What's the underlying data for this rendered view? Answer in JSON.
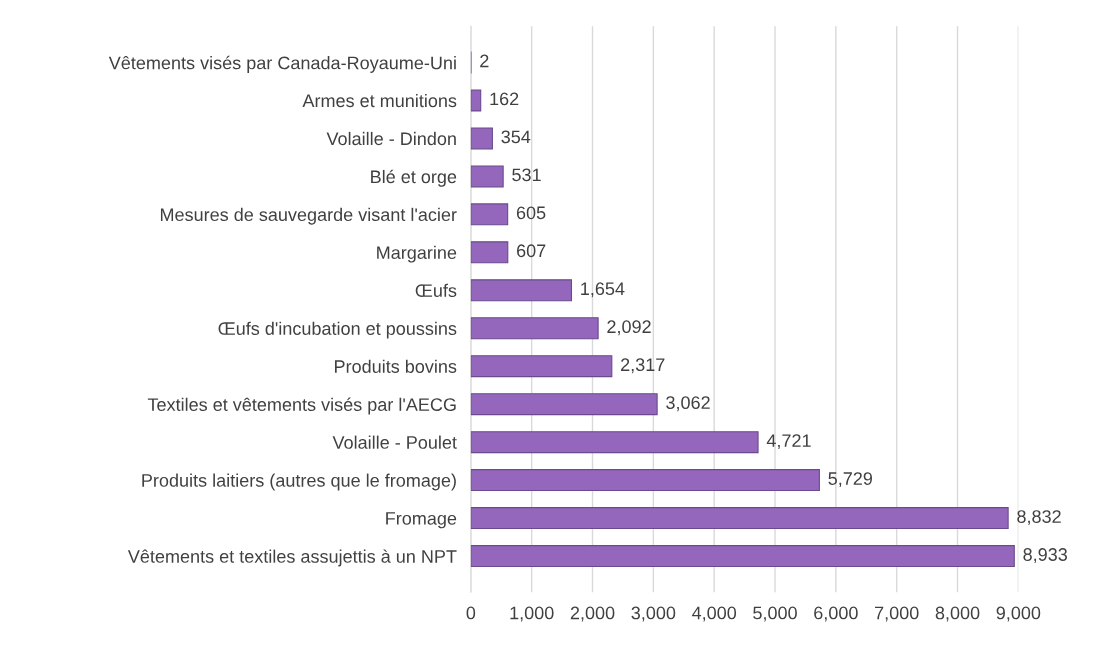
{
  "chart_data": {
    "type": "bar",
    "orientation": "horizontal",
    "categories": [
      "Vêtements visés par Canada-Royaume-Uni",
      "Armes et munitions",
      "Volaille - Dindon",
      "Blé et orge",
      "Mesures de sauvegarde visant l'acier",
      "Margarine",
      "Œufs",
      "Œufs d'incubation et poussins",
      "Produits bovins",
      "Textiles et vêtements visés par l'AECG",
      "Volaille - Poulet",
      "Produits laitiers (autres que le fromage)",
      "Fromage",
      "Vêtements et textiles assujettis à un NPT"
    ],
    "values": [
      2,
      162,
      354,
      531,
      605,
      607,
      1654,
      2092,
      2317,
      3062,
      4721,
      5729,
      8832,
      8933
    ],
    "value_labels": [
      "2",
      "162",
      "354",
      "531",
      "605",
      "607",
      "1,654",
      "2,092",
      "2,317",
      "3,062",
      "4,721",
      "5,729",
      "8,832",
      "8,933"
    ],
    "color": "#9467bd",
    "xlim": [
      0,
      9000
    ],
    "xticks": [
      0,
      {
        "value": 1000,
        "label": "1,000"
      },
      {
        "value": 2000,
        "label": "2,000"
      },
      {
        "value": 3000,
        "label": "3,000"
      },
      {
        "value": 4000,
        "label": "4,000"
      },
      {
        "value": 5000,
        "label": "5,000"
      },
      {
        "value": 6000,
        "label": "6,000"
      },
      {
        "value": 7000,
        "label": "7,000"
      },
      {
        "value": 8000,
        "label": "8,000"
      },
      {
        "value": 9000,
        "label": "9,000"
      }
    ],
    "grid": "x"
  }
}
